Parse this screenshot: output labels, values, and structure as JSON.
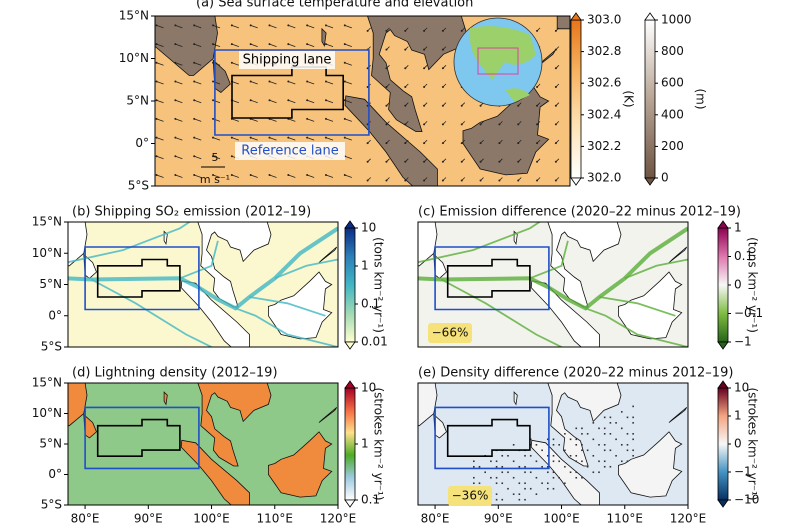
{
  "panels": [
    {
      "title": "(a) Sea surface temperature and elevation",
      "xlim": [
        73,
        121.5
      ],
      "ylim": [
        -5,
        15
      ],
      "yticks": [
        {
          "value": 15,
          "label": "15°N"
        },
        {
          "value": 10,
          "label": "10°N"
        },
        {
          "value": 5,
          "label": "5°N"
        },
        {
          "value": 0,
          "label": "0°"
        },
        {
          "value": -5,
          "label": "5°S"
        }
      ],
      "map_color": "#f6c27c",
      "land_color": "#8c7868",
      "annotations": [
        "Shipping lane",
        "Reference lane",
        "5",
        "m s⁻¹"
      ],
      "colorbars": [
        {
          "clim": [
            302,
            303
          ],
          "scale": "linear",
          "label": "(K)",
          "colors": [
            "#ffffff",
            "#fde3b5",
            "#f7b462",
            "#e8751a"
          ],
          "ticks": [
            {
              "value": 302,
              "label": "302.0"
            },
            302.2,
            302.4,
            302.6,
            302.8,
            {
              "value": 303,
              "label": "303.0"
            }
          ]
        },
        {
          "clim": [
            0,
            1000
          ],
          "scale": "linear",
          "label": "(m)",
          "colors": [
            "#6e5443",
            "#b8a595",
            "#ffffff"
          ],
          "ticks": [
            0,
            200,
            400,
            600,
            800,
            1000
          ]
        }
      ]
    },
    {
      "title": "(b) Shipping SO₂ emission (2012–19)",
      "xlim": [
        77.3,
        120
      ],
      "ylim": [
        -5,
        15
      ],
      "yticks": [
        {
          "value": 15,
          "label": "15°N"
        },
        {
          "value": 10,
          "label": "10°N"
        },
        {
          "value": 5,
          "label": "5°N"
        },
        {
          "value": 0,
          "label": "0°"
        },
        {
          "value": -5,
          "label": "5°S"
        }
      ],
      "map_color": "#fbf8cf",
      "land_color": "#ffffff",
      "lane_color": "#41b6c4",
      "annotations": [],
      "colorbars": [
        {
          "clim": [
            0.01,
            10
          ],
          "scale": "log",
          "label": "(tons km⁻² yr⁻¹)",
          "colors": [
            "#ffffd0",
            "#a1dab4",
            "#41b6c4",
            "#2c7fb8",
            "#0c2c84"
          ],
          "ticks": [
            0.01,
            0.1,
            1,
            10
          ]
        }
      ]
    },
    {
      "title": "(c) Emission difference (2020–22 minus 2012–19)",
      "xlim": [
        77.3,
        120
      ],
      "ylim": [
        -5,
        15
      ],
      "map_color": "#f3f3ee",
      "land_color": "#ffffff",
      "lane_color": "#5aae38",
      "annotations": [
        "−66%"
      ],
      "colorbars": [
        {
          "clim": [
            -1,
            1
          ],
          "scale": "symlog",
          "linthresh": 0.1,
          "label": "(tons km⁻² yr⁻¹)",
          "colors": [
            "#276419",
            "#7fbc41",
            "#f7f7f7",
            "#de77ae",
            "#8e0152"
          ],
          "ticks": [
            {
              "value": -1,
              "label": "−1"
            },
            {
              "value": -0.1,
              "label": "−0.1"
            },
            0,
            0.1,
            1
          ]
        }
      ]
    },
    {
      "title": "(d) Lightning density (2012–19)",
      "xlim": [
        77.3,
        120
      ],
      "ylim": [
        -5,
        15
      ],
      "yticks": [
        {
          "value": 15,
          "label": "15°N"
        },
        {
          "value": 10,
          "label": "10°N"
        },
        {
          "value": 5,
          "label": "5°N"
        },
        {
          "value": 0,
          "label": "0°"
        },
        {
          "value": -5,
          "label": "5°S"
        }
      ],
      "xticks": [
        {
          "value": 80,
          "label": "80°E"
        },
        {
          "value": 90,
          "label": "90°E"
        },
        {
          "value": 100,
          "label": "100°E"
        },
        {
          "value": 110,
          "label": "110°E"
        },
        {
          "value": 120,
          "label": "120°E"
        }
      ],
      "map_color": "#8fc98a",
      "land_color": "#f08a3c",
      "annotations": [],
      "colorbars": [
        {
          "clim": [
            0.1,
            10
          ],
          "scale": "log",
          "label": "(strokes km⁻² yr⁻¹)",
          "colors": [
            "#ffffff",
            "#9ecae1",
            "#4dac26",
            "#fee08b",
            "#f46d43",
            "#a50026"
          ],
          "ticks": [
            0.1,
            1,
            10
          ]
        }
      ]
    },
    {
      "title": "(e) Density difference (2020–22 minus 2012–19)",
      "xlim": [
        77.3,
        120
      ],
      "ylim": [
        -5,
        15
      ],
      "xticks": [
        {
          "value": 80,
          "label": "80°E"
        },
        {
          "value": 90,
          "label": "90°E"
        },
        {
          "value": 100,
          "label": "100°E"
        },
        {
          "value": 110,
          "label": "110°E"
        },
        {
          "value": 120,
          "label": "120°E"
        }
      ],
      "map_color": "#dde8f2",
      "land_color": "#f4f4f4",
      "annotations": [
        "−36%"
      ],
      "colorbars": [
        {
          "clim": [
            -10,
            10
          ],
          "scale": "symlog",
          "linthresh": 1,
          "label": "(strokes km⁻² yr⁻¹)",
          "colors": [
            "#053061",
            "#4393c3",
            "#f7f7f7",
            "#f4a582",
            "#67001f"
          ],
          "ticks": [
            {
              "value": -10,
              "label": "−10"
            },
            {
              "value": -1,
              "label": "−1"
            },
            0,
            1,
            10
          ]
        }
      ]
    }
  ]
}
